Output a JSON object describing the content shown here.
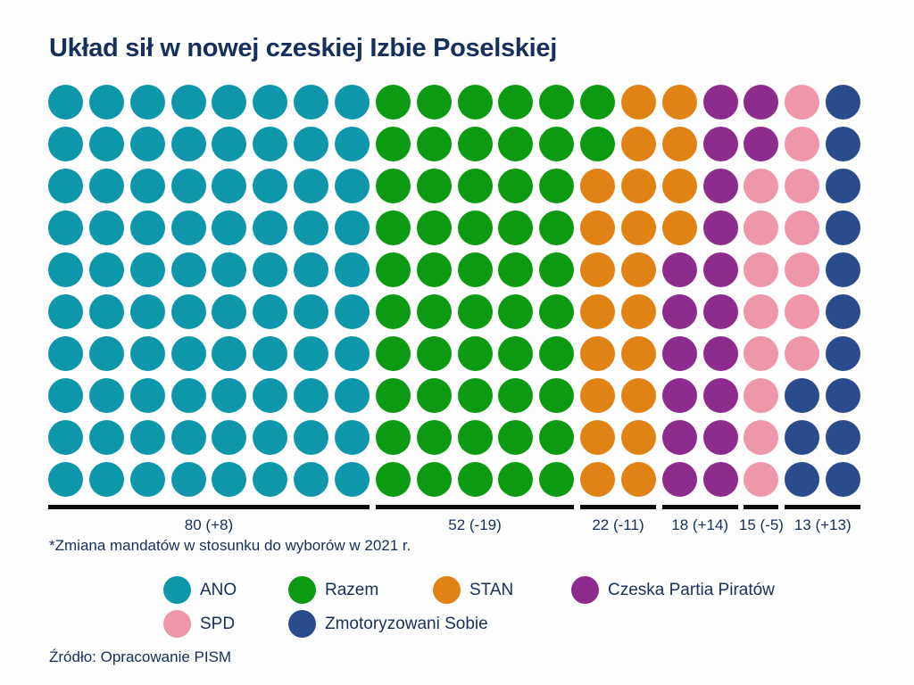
{
  "title": "Układ sił w nowej czeskiej Izbie Poselskiej",
  "footnote": "*Zmiana mandatów w stosunku do wyborów w 2021 r.",
  "source": "Źródło: Opracowanie PISM",
  "colors": {
    "text": "#15305A",
    "background": "#FDFDFD",
    "bracket": "#0A0A0A"
  },
  "chart_data": {
    "type": "waffle",
    "title": "Układ sił w nowej czeskiej Izbie Poselskiej",
    "total_seats": 200,
    "grid": {
      "rows": 10,
      "cols": 20
    },
    "parties": [
      {
        "name": "ANO",
        "seats": 80,
        "change": "+8",
        "label": "80 (+8)",
        "color": "#0E96AA"
      },
      {
        "name": "Razem",
        "seats": 52,
        "change": "-19",
        "label": "52 (-19)",
        "color": "#0C9A12"
      },
      {
        "name": "STAN",
        "seats": 22,
        "change": "-11",
        "label": "22 (-11)",
        "color": "#E08214"
      },
      {
        "name": "Czeska Partia Piratów",
        "seats": 18,
        "change": "+14",
        "label": "18 (+14)",
        "color": "#8D2C8D"
      },
      {
        "name": "SPD",
        "seats": 15,
        "change": "-5",
        "label": "15 (-5)",
        "color": "#EE97AB"
      },
      {
        "name": "Zmotoryzowani Sobie",
        "seats": 13,
        "change": "+13",
        "label": "13 (+13)",
        "color": "#2A4C8D"
      }
    ],
    "row_party_counts": [
      [
        8,
        6,
        2,
        2,
        1,
        1
      ],
      [
        8,
        6,
        2,
        2,
        1,
        1
      ],
      [
        8,
        5,
        3,
        1,
        2,
        1
      ],
      [
        8,
        5,
        3,
        1,
        2,
        1
      ],
      [
        8,
        5,
        2,
        2,
        2,
        1
      ],
      [
        8,
        5,
        2,
        2,
        2,
        1
      ],
      [
        8,
        5,
        2,
        2,
        2,
        1
      ],
      [
        8,
        5,
        2,
        2,
        1,
        2
      ],
      [
        8,
        5,
        2,
        2,
        1,
        2
      ],
      [
        8,
        5,
        2,
        2,
        1,
        2
      ]
    ],
    "legend_rows": [
      [
        0,
        1,
        2,
        3
      ],
      [
        4,
        5
      ]
    ]
  }
}
